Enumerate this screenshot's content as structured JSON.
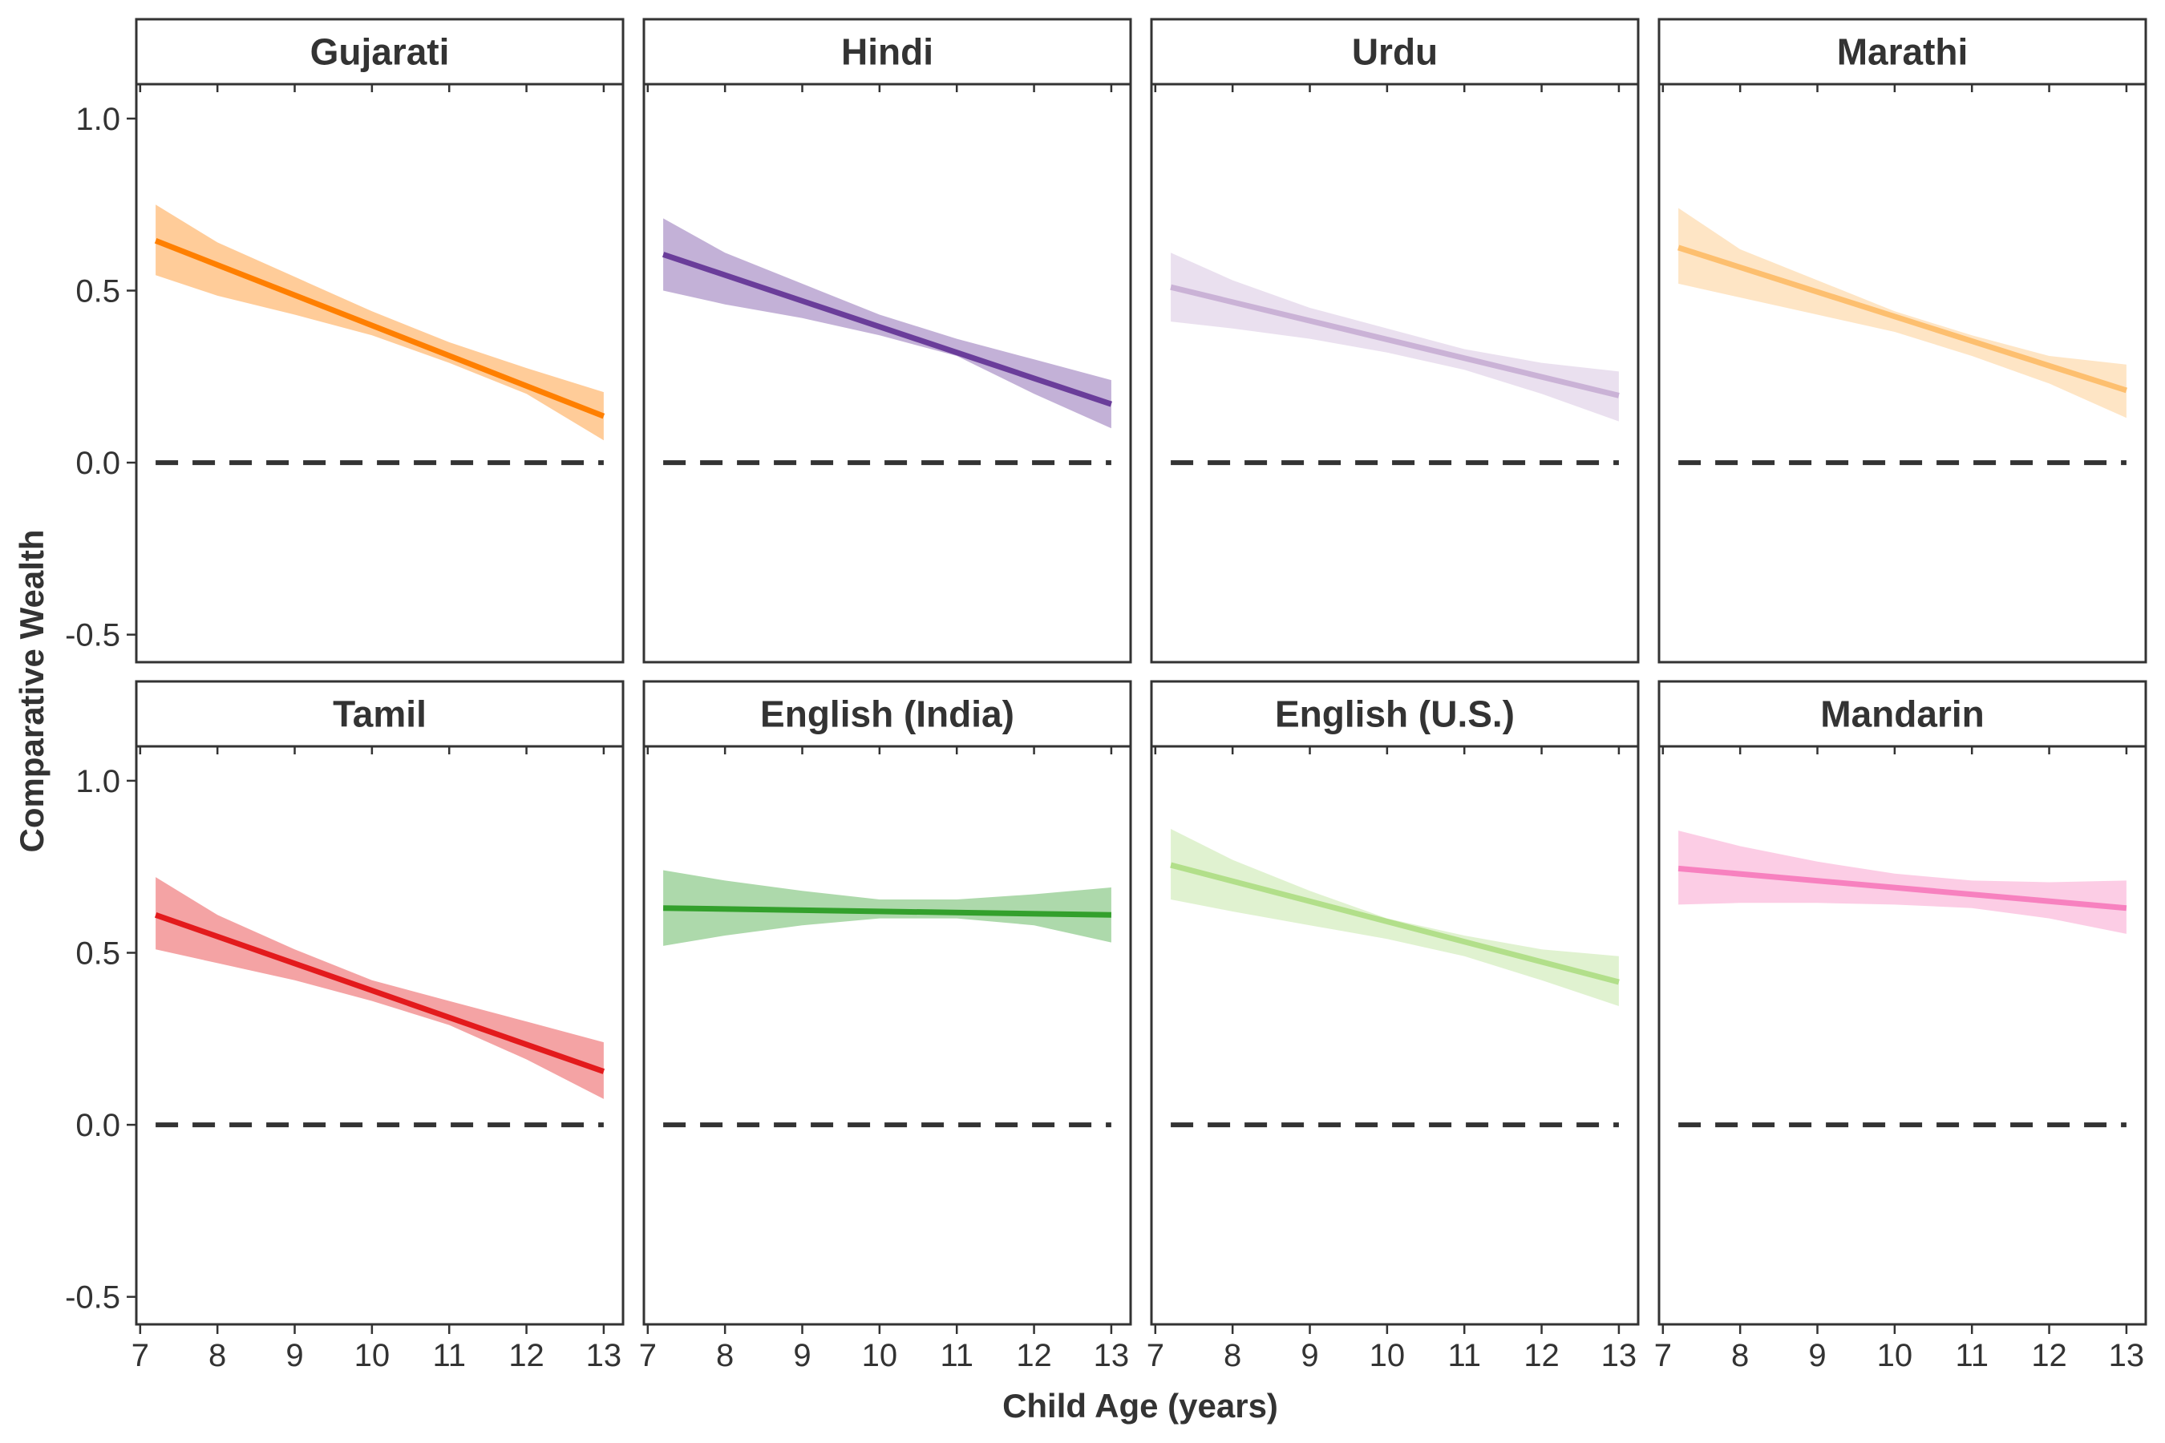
{
  "chart_data": {
    "type": "line",
    "facet_layout": "4 columns x 2 rows",
    "xlabel": "Child Age (years)",
    "ylabel": "Comparative Wealth",
    "x_ticks": [
      7,
      8,
      9,
      10,
      11,
      12,
      13
    ],
    "y_ticks": [
      -0.5,
      0.0,
      0.5,
      1.0
    ],
    "y_tick_labels": [
      "-0.5",
      "0.0",
      "0.5",
      "1.0"
    ],
    "xlim": [
      6.95,
      13.25
    ],
    "ylim": [
      -0.58,
      1.1
    ],
    "reference_line": {
      "y": 0,
      "style": "dashed",
      "color": "#333333"
    },
    "grid": false,
    "legend": "none",
    "panels": [
      {
        "name": "Gujarati",
        "color": "#ff7f00",
        "line": {
          "x": [
            7.2,
            13
          ],
          "y": [
            0.645,
            0.135
          ]
        },
        "band": {
          "x": [
            7.2,
            8,
            9,
            10,
            11,
            12,
            13
          ],
          "lower": [
            0.545,
            0.485,
            0.43,
            0.37,
            0.29,
            0.2,
            0.065
          ],
          "upper": [
            0.75,
            0.64,
            0.54,
            0.44,
            0.35,
            0.275,
            0.205
          ]
        }
      },
      {
        "name": "Hindi",
        "color": "#6a3d9a",
        "line": {
          "x": [
            7.2,
            13
          ],
          "y": [
            0.605,
            0.17
          ]
        },
        "band": {
          "x": [
            7.2,
            8,
            9,
            10,
            11,
            12,
            13
          ],
          "lower": [
            0.5,
            0.46,
            0.42,
            0.37,
            0.31,
            0.2,
            0.1
          ],
          "upper": [
            0.71,
            0.61,
            0.52,
            0.43,
            0.36,
            0.3,
            0.24
          ]
        }
      },
      {
        "name": "Urdu",
        "color": "#cab2d6",
        "line": {
          "x": [
            7.2,
            13
          ],
          "y": [
            0.51,
            0.195
          ]
        },
        "band": {
          "x": [
            7.2,
            8,
            9,
            10,
            11,
            12,
            13
          ],
          "lower": [
            0.41,
            0.39,
            0.36,
            0.32,
            0.27,
            0.2,
            0.12
          ],
          "upper": [
            0.61,
            0.53,
            0.45,
            0.39,
            0.33,
            0.29,
            0.265
          ]
        }
      },
      {
        "name": "Marathi",
        "color": "#fdbf6f",
        "line": {
          "x": [
            7.2,
            13
          ],
          "y": [
            0.625,
            0.21
          ]
        },
        "band": {
          "x": [
            7.2,
            8,
            9,
            10,
            11,
            12,
            13
          ],
          "lower": [
            0.52,
            0.48,
            0.43,
            0.38,
            0.31,
            0.23,
            0.13
          ],
          "upper": [
            0.74,
            0.62,
            0.53,
            0.44,
            0.37,
            0.31,
            0.285
          ]
        }
      },
      {
        "name": "Tamil",
        "color": "#e31a1c",
        "line": {
          "x": [
            7.2,
            13
          ],
          "y": [
            0.61,
            0.155
          ]
        },
        "band": {
          "x": [
            7.2,
            8,
            9,
            10,
            11,
            12,
            13
          ],
          "lower": [
            0.51,
            0.47,
            0.42,
            0.36,
            0.29,
            0.19,
            0.075
          ],
          "upper": [
            0.72,
            0.61,
            0.51,
            0.42,
            0.36,
            0.3,
            0.24
          ]
        }
      },
      {
        "name": "English (India)",
        "color": "#33a02c",
        "line": {
          "x": [
            7.2,
            13
          ],
          "y": [
            0.63,
            0.61
          ]
        },
        "band": {
          "x": [
            7.2,
            8,
            9,
            10,
            11,
            12,
            13
          ],
          "lower": [
            0.52,
            0.55,
            0.58,
            0.6,
            0.6,
            0.58,
            0.53
          ],
          "upper": [
            0.74,
            0.71,
            0.68,
            0.655,
            0.655,
            0.67,
            0.69
          ]
        }
      },
      {
        "name": "English (U.S.)",
        "color": "#b2df8a",
        "line": {
          "x": [
            7.2,
            13
          ],
          "y": [
            0.755,
            0.415
          ]
        },
        "band": {
          "x": [
            7.2,
            8,
            9,
            10,
            11,
            12,
            13
          ],
          "lower": [
            0.655,
            0.62,
            0.58,
            0.54,
            0.49,
            0.42,
            0.345
          ],
          "upper": [
            0.86,
            0.77,
            0.68,
            0.6,
            0.55,
            0.51,
            0.49
          ]
        }
      },
      {
        "name": "Mandarin",
        "color": "#f781bf",
        "line": {
          "x": [
            7.2,
            13
          ],
          "y": [
            0.745,
            0.63
          ]
        },
        "band": {
          "x": [
            7.2,
            8,
            9,
            10,
            11,
            12,
            13
          ],
          "lower": [
            0.64,
            0.645,
            0.645,
            0.64,
            0.63,
            0.6,
            0.555
          ],
          "upper": [
            0.855,
            0.81,
            0.765,
            0.73,
            0.71,
            0.705,
            0.71
          ]
        }
      }
    ]
  }
}
